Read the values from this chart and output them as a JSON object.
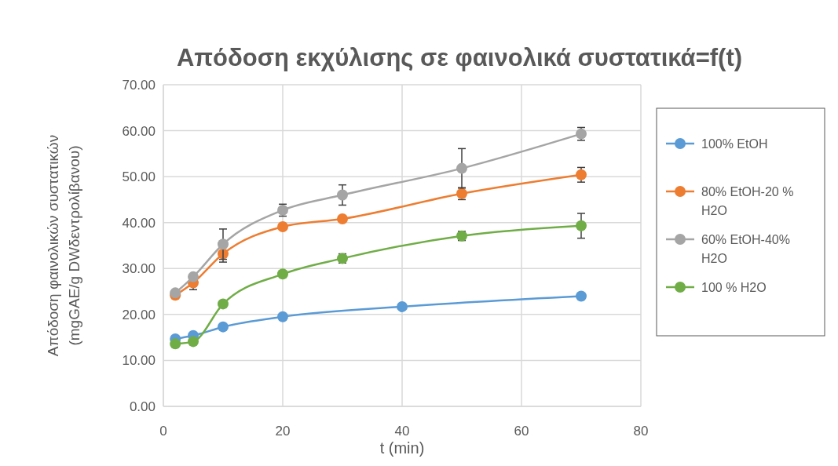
{
  "chart_data": {
    "type": "line",
    "title": "Απόδοση εκχύλισης σε φαινολικά  συστατικά=f(t)",
    "xlabel": "t (min)",
    "ylabel": "Απόδοση φαινολικών συστατικών\n(mgGAE/g DWδεντρολίβανου)",
    "xlim": [
      0,
      80
    ],
    "xticks": [
      0,
      20,
      40,
      60,
      80
    ],
    "ylim": [
      0,
      70
    ],
    "yticks": [
      {
        "value": 0,
        "label": "0.00"
      },
      {
        "value": 10,
        "label": "10.00"
      },
      {
        "value": 20,
        "label": "20.00"
      },
      {
        "value": 30,
        "label": "30.00"
      },
      {
        "value": 40,
        "label": "40.00"
      },
      {
        "value": 50,
        "label": "50.00"
      },
      {
        "value": 60,
        "label": "60.00"
      },
      {
        "value": 70,
        "label": "70.00"
      }
    ],
    "grid": true,
    "legend": "right",
    "marker": "circle",
    "line_style": "solid",
    "series": [
      {
        "name": "100% EtOH",
        "color": "#5b9bd5",
        "x": [
          2,
          5,
          10,
          20,
          40,
          70
        ],
        "values": [
          14.7,
          15.4,
          17.3,
          19.5,
          21.7,
          24.0
        ]
      },
      {
        "name": "80% EtOH-20 % H2O",
        "color": "#ed7d31",
        "x": [
          2,
          5,
          10,
          20,
          30,
          50,
          70
        ],
        "values": [
          24.2,
          26.9,
          33.2,
          39.1,
          40.8,
          46.3,
          50.4
        ],
        "errors": [
          null,
          1.5,
          1.8,
          null,
          null,
          1.3,
          1.6
        ]
      },
      {
        "name": "60% EtOH-40% H2O",
        "color": "#a5a5a5",
        "x": [
          2,
          5,
          10,
          20,
          30,
          50,
          70
        ],
        "values": [
          24.7,
          28.2,
          35.3,
          42.7,
          46.0,
          51.8,
          59.3
        ],
        "errors": [
          null,
          null,
          3.3,
          1.3,
          2.2,
          4.3,
          1.4
        ]
      },
      {
        "name": "100 % H2O",
        "color": "#70ad47",
        "x": [
          2,
          5,
          10,
          20,
          30,
          50,
          70
        ],
        "values": [
          13.6,
          14.1,
          22.3,
          28.8,
          32.2,
          37.1,
          39.3
        ],
        "errors": [
          null,
          null,
          null,
          null,
          1.0,
          1.0,
          2.7
        ]
      }
    ]
  }
}
